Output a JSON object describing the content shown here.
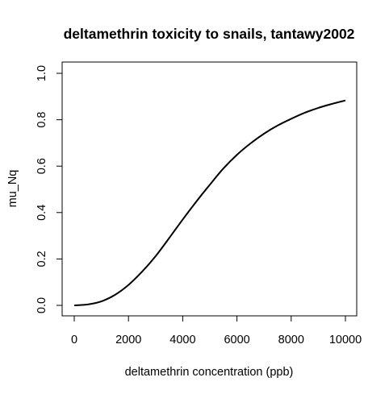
{
  "chart_data": {
    "type": "line",
    "title": "deltamethrin toxicity to snails, tantawy2002",
    "xlabel": "deltamethrin concentration (ppb)",
    "ylabel": "mu_Nq",
    "xlim": [
      0,
      10000
    ],
    "ylim": [
      0,
      1
    ],
    "x_ticks": [
      "0",
      "2000",
      "4000",
      "6000",
      "8000",
      "10000"
    ],
    "y_ticks": [
      "0.0",
      "0.2",
      "0.4",
      "0.6",
      "0.8",
      "1.0"
    ],
    "grid": false,
    "legend": "none",
    "line_color": "#000000",
    "series": [
      {
        "x": [
          0,
          500,
          1000,
          1500,
          2000,
          2500,
          3000,
          3500,
          4000,
          4500,
          5000,
          5500,
          6000,
          6500,
          7000,
          7500,
          8000,
          8500,
          9000,
          9500,
          10000
        ],
        "values": [
          0.0,
          0.004,
          0.017,
          0.045,
          0.088,
          0.145,
          0.212,
          0.29,
          0.37,
          0.447,
          0.52,
          0.59,
          0.649,
          0.698,
          0.74,
          0.775,
          0.804,
          0.83,
          0.851,
          0.868,
          0.883
        ]
      }
    ]
  }
}
